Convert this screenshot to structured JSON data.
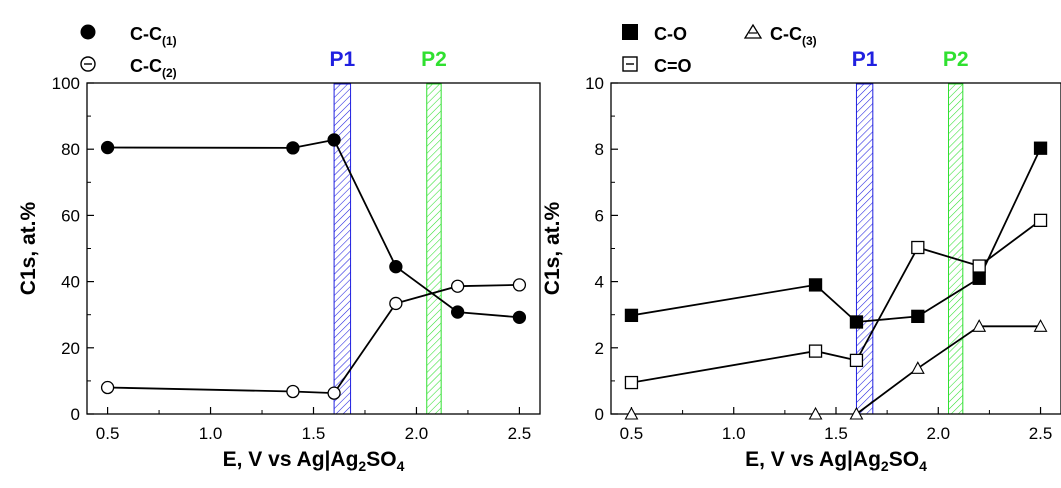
{
  "chart_data": [
    {
      "type": "line",
      "xlabel": "E, V vs Ag|Ag",
      "xlabel_sub": "2",
      "xlabel_tail": "SO",
      "xlabel_sub2": "4",
      "ylabel": "C1s, at.%",
      "xlim": [
        0.4,
        2.6
      ],
      "ylim": [
        0,
        100
      ],
      "x_ticks": [
        "0.5",
        "1.0",
        "1.5",
        "2.0",
        "2.5"
      ],
      "y_ticks": [
        "0",
        "20",
        "40",
        "60",
        "80",
        "100"
      ],
      "bands": [
        {
          "label": "P1",
          "from": 1.6,
          "to": 1.68,
          "color": "#2020e0"
        },
        {
          "label": "P2",
          "from": 2.05,
          "to": 2.12,
          "color": "#30e030"
        }
      ],
      "series": [
        {
          "name": "C-C",
          "sub": "(1)",
          "marker": "filled-circle",
          "x": [
            0.5,
            1.4,
            1.6,
            1.9,
            2.2,
            2.5
          ],
          "y": [
            80.5,
            80.4,
            82.8,
            44.5,
            30.8,
            29.2
          ]
        },
        {
          "name": "C-C",
          "sub": "(2)",
          "marker": "open-circle",
          "x": [
            0.5,
            1.4,
            1.6,
            1.9,
            2.2,
            2.5
          ],
          "y": [
            8.0,
            6.8,
            6.3,
            33.4,
            38.6,
            39.0
          ]
        }
      ]
    },
    {
      "type": "line",
      "xlabel": "E, V vs Ag|Ag",
      "xlabel_sub": "2",
      "xlabel_tail": "SO",
      "xlabel_sub2": "4",
      "ylabel": "C1s, at.%",
      "xlim": [
        0.4,
        2.6
      ],
      "ylim": [
        0,
        10
      ],
      "x_ticks": [
        "0.5",
        "1.0",
        "1.5",
        "2.0",
        "2.5"
      ],
      "y_ticks": [
        "0",
        "2",
        "4",
        "6",
        "8",
        "10"
      ],
      "bands": [
        {
          "label": "P1",
          "from": 1.6,
          "to": 1.68,
          "color": "#2020e0"
        },
        {
          "label": "P2",
          "from": 2.05,
          "to": 2.12,
          "color": "#30e030"
        }
      ],
      "series": [
        {
          "name": "C-O",
          "sub": "",
          "marker": "filled-square",
          "x": [
            0.5,
            1.4,
            1.6,
            1.9,
            2.2,
            2.5
          ],
          "y": [
            2.98,
            3.9,
            2.78,
            2.95,
            4.1,
            8.03
          ]
        },
        {
          "name": "C=O",
          "sub": "",
          "marker": "open-square",
          "x": [
            0.5,
            1.4,
            1.6,
            1.9,
            2.2,
            2.5
          ],
          "y": [
            0.95,
            1.9,
            1.62,
            5.03,
            4.47,
            5.85
          ]
        },
        {
          "name": "C-C",
          "sub": "(3)",
          "marker": "open-triangle",
          "x": [
            0.5,
            1.4,
            1.6,
            1.9,
            2.2,
            2.5
          ],
          "y": [
            0.0,
            0.0,
            0.0,
            1.38,
            2.65,
            2.65
          ]
        }
      ]
    }
  ]
}
